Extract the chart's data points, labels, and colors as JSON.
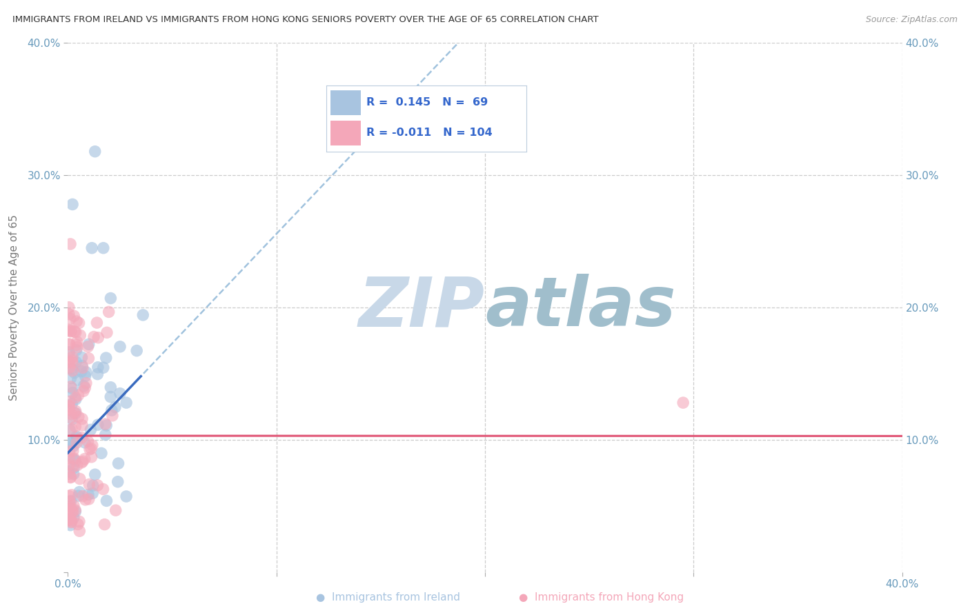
{
  "title": "IMMIGRANTS FROM IRELAND VS IMMIGRANTS FROM HONG KONG SENIORS POVERTY OVER THE AGE OF 65 CORRELATION CHART",
  "source": "Source: ZipAtlas.com",
  "ylabel": "Seniors Poverty Over the Age of 65",
  "xlim": [
    0.0,
    0.4
  ],
  "ylim": [
    0.0,
    0.4
  ],
  "legend_ireland_R": "0.145",
  "legend_ireland_N": "69",
  "legend_hk_R": "-0.011",
  "legend_hk_N": "104",
  "ireland_scatter_color": "#a8c4e0",
  "hk_scatter_color": "#f4a7b9",
  "ireland_line_color": "#3a6bbf",
  "hk_line_color": "#e05575",
  "dashed_line_color": "#90b8d8",
  "watermark_color": "#ccdde8",
  "background_color": "#ffffff",
  "grid_color": "#cccccc",
  "title_color": "#333333",
  "axis_label_color": "#6699bb",
  "ylabel_color": "#777777",
  "legend_text_color": "#3366cc",
  "legend_border_color": "#aaccdd",
  "bottom_legend_ireland": "Immigrants from Ireland",
  "bottom_legend_hk": "Immigrants from Hong Kong"
}
